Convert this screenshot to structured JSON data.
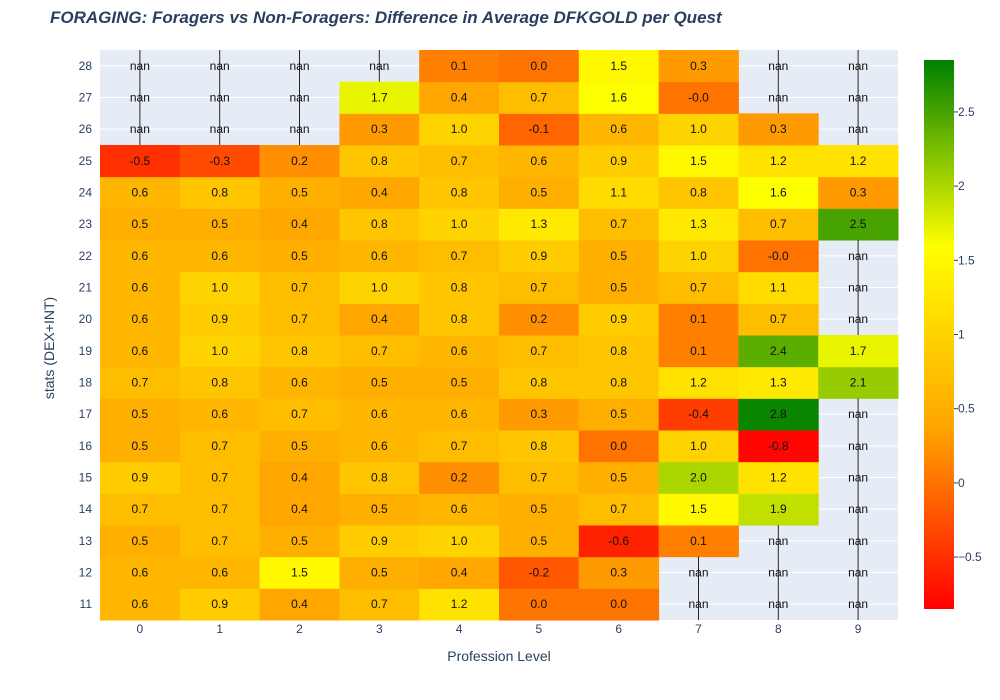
{
  "chart_data": {
    "type": "heatmap",
    "title": "FORAGING: Foragers vs Non-Foragers: Difference in Average DFKGOLD per Quest",
    "xlabel": "Profession Level",
    "ylabel": "stats (DEX+INT)",
    "x": [
      0,
      1,
      2,
      3,
      4,
      5,
      6,
      7,
      8,
      9
    ],
    "y": [
      11,
      12,
      13,
      14,
      15,
      16,
      17,
      18,
      19,
      20,
      21,
      22,
      23,
      24,
      25,
      26,
      27,
      28
    ],
    "z": [
      [
        "0.6",
        "0.9",
        "0.4",
        "0.7",
        "1.2",
        "0.0",
        "0.0",
        "nan",
        "nan",
        "nan"
      ],
      [
        "0.6",
        "0.6",
        "1.5",
        "0.5",
        "0.4",
        "-0.2",
        "0.3",
        "nan",
        "nan",
        "nan"
      ],
      [
        "0.5",
        "0.7",
        "0.5",
        "0.9",
        "1.0",
        "0.5",
        "-0.6",
        "0.1",
        "nan",
        "nan"
      ],
      [
        "0.7",
        "0.7",
        "0.4",
        "0.5",
        "0.6",
        "0.5",
        "0.7",
        "1.5",
        "1.9",
        "nan"
      ],
      [
        "0.9",
        "0.7",
        "0.4",
        "0.8",
        "0.2",
        "0.7",
        "0.5",
        "2.0",
        "1.2",
        "nan"
      ],
      [
        "0.5",
        "0.7",
        "0.5",
        "0.6",
        "0.7",
        "0.8",
        "0.0",
        "1.0",
        "-0.8",
        "nan"
      ],
      [
        "0.5",
        "0.6",
        "0.7",
        "0.6",
        "0.6",
        "0.3",
        "0.5",
        "-0.4",
        "2.8",
        "nan"
      ],
      [
        "0.7",
        "0.8",
        "0.6",
        "0.5",
        "0.5",
        "0.8",
        "0.8",
        "1.2",
        "1.3",
        "2.1"
      ],
      [
        "0.6",
        "1.0",
        "0.8",
        "0.7",
        "0.6",
        "0.7",
        "0.8",
        "0.1",
        "2.4",
        "1.7"
      ],
      [
        "0.6",
        "0.9",
        "0.7",
        "0.4",
        "0.8",
        "0.2",
        "0.9",
        "0.1",
        "0.7",
        "nan"
      ],
      [
        "0.6",
        "1.0",
        "0.7",
        "1.0",
        "0.8",
        "0.7",
        "0.5",
        "0.7",
        "1.1",
        "nan"
      ],
      [
        "0.6",
        "0.6",
        "0.5",
        "0.6",
        "0.7",
        "0.9",
        "0.5",
        "1.0",
        "-0.0",
        "nan"
      ],
      [
        "0.5",
        "0.5",
        "0.4",
        "0.8",
        "1.0",
        "1.3",
        "0.7",
        "1.3",
        "0.7",
        "2.5"
      ],
      [
        "0.6",
        "0.8",
        "0.5",
        "0.4",
        "0.8",
        "0.5",
        "1.1",
        "0.8",
        "1.6",
        "0.3"
      ],
      [
        "-0.5",
        "-0.3",
        "0.2",
        "0.8",
        "0.7",
        "0.6",
        "0.9",
        "1.5",
        "1.2",
        "1.2"
      ],
      [
        "nan",
        "nan",
        "nan",
        "0.3",
        "1.0",
        "-0.1",
        "0.6",
        "1.0",
        "0.3",
        "nan"
      ],
      [
        "nan",
        "nan",
        "nan",
        "1.7",
        "0.4",
        "0.7",
        "1.6",
        "-0.0",
        "nan",
        "nan"
      ],
      [
        "nan",
        "nan",
        "nan",
        "nan",
        "0.1",
        "0.0",
        "1.5",
        "0.3",
        "nan",
        "nan"
      ]
    ],
    "colorscale": [
      [
        0,
        "#ff0000"
      ],
      [
        0.33,
        "#ffa500"
      ],
      [
        0.66,
        "#ffff00"
      ],
      [
        1,
        "#008000"
      ]
    ],
    "zmin": -0.85,
    "zmax": 2.85,
    "colorbar_ticks": [
      "−0.5",
      "0",
      "0.5",
      "1",
      "1.5",
      "2",
      "2.5"
    ],
    "colorbar_tick_values": [
      -0.5,
      0,
      0.5,
      1,
      1.5,
      2,
      2.5
    ],
    "plot_background": "#e5ecf6",
    "grid": true
  }
}
